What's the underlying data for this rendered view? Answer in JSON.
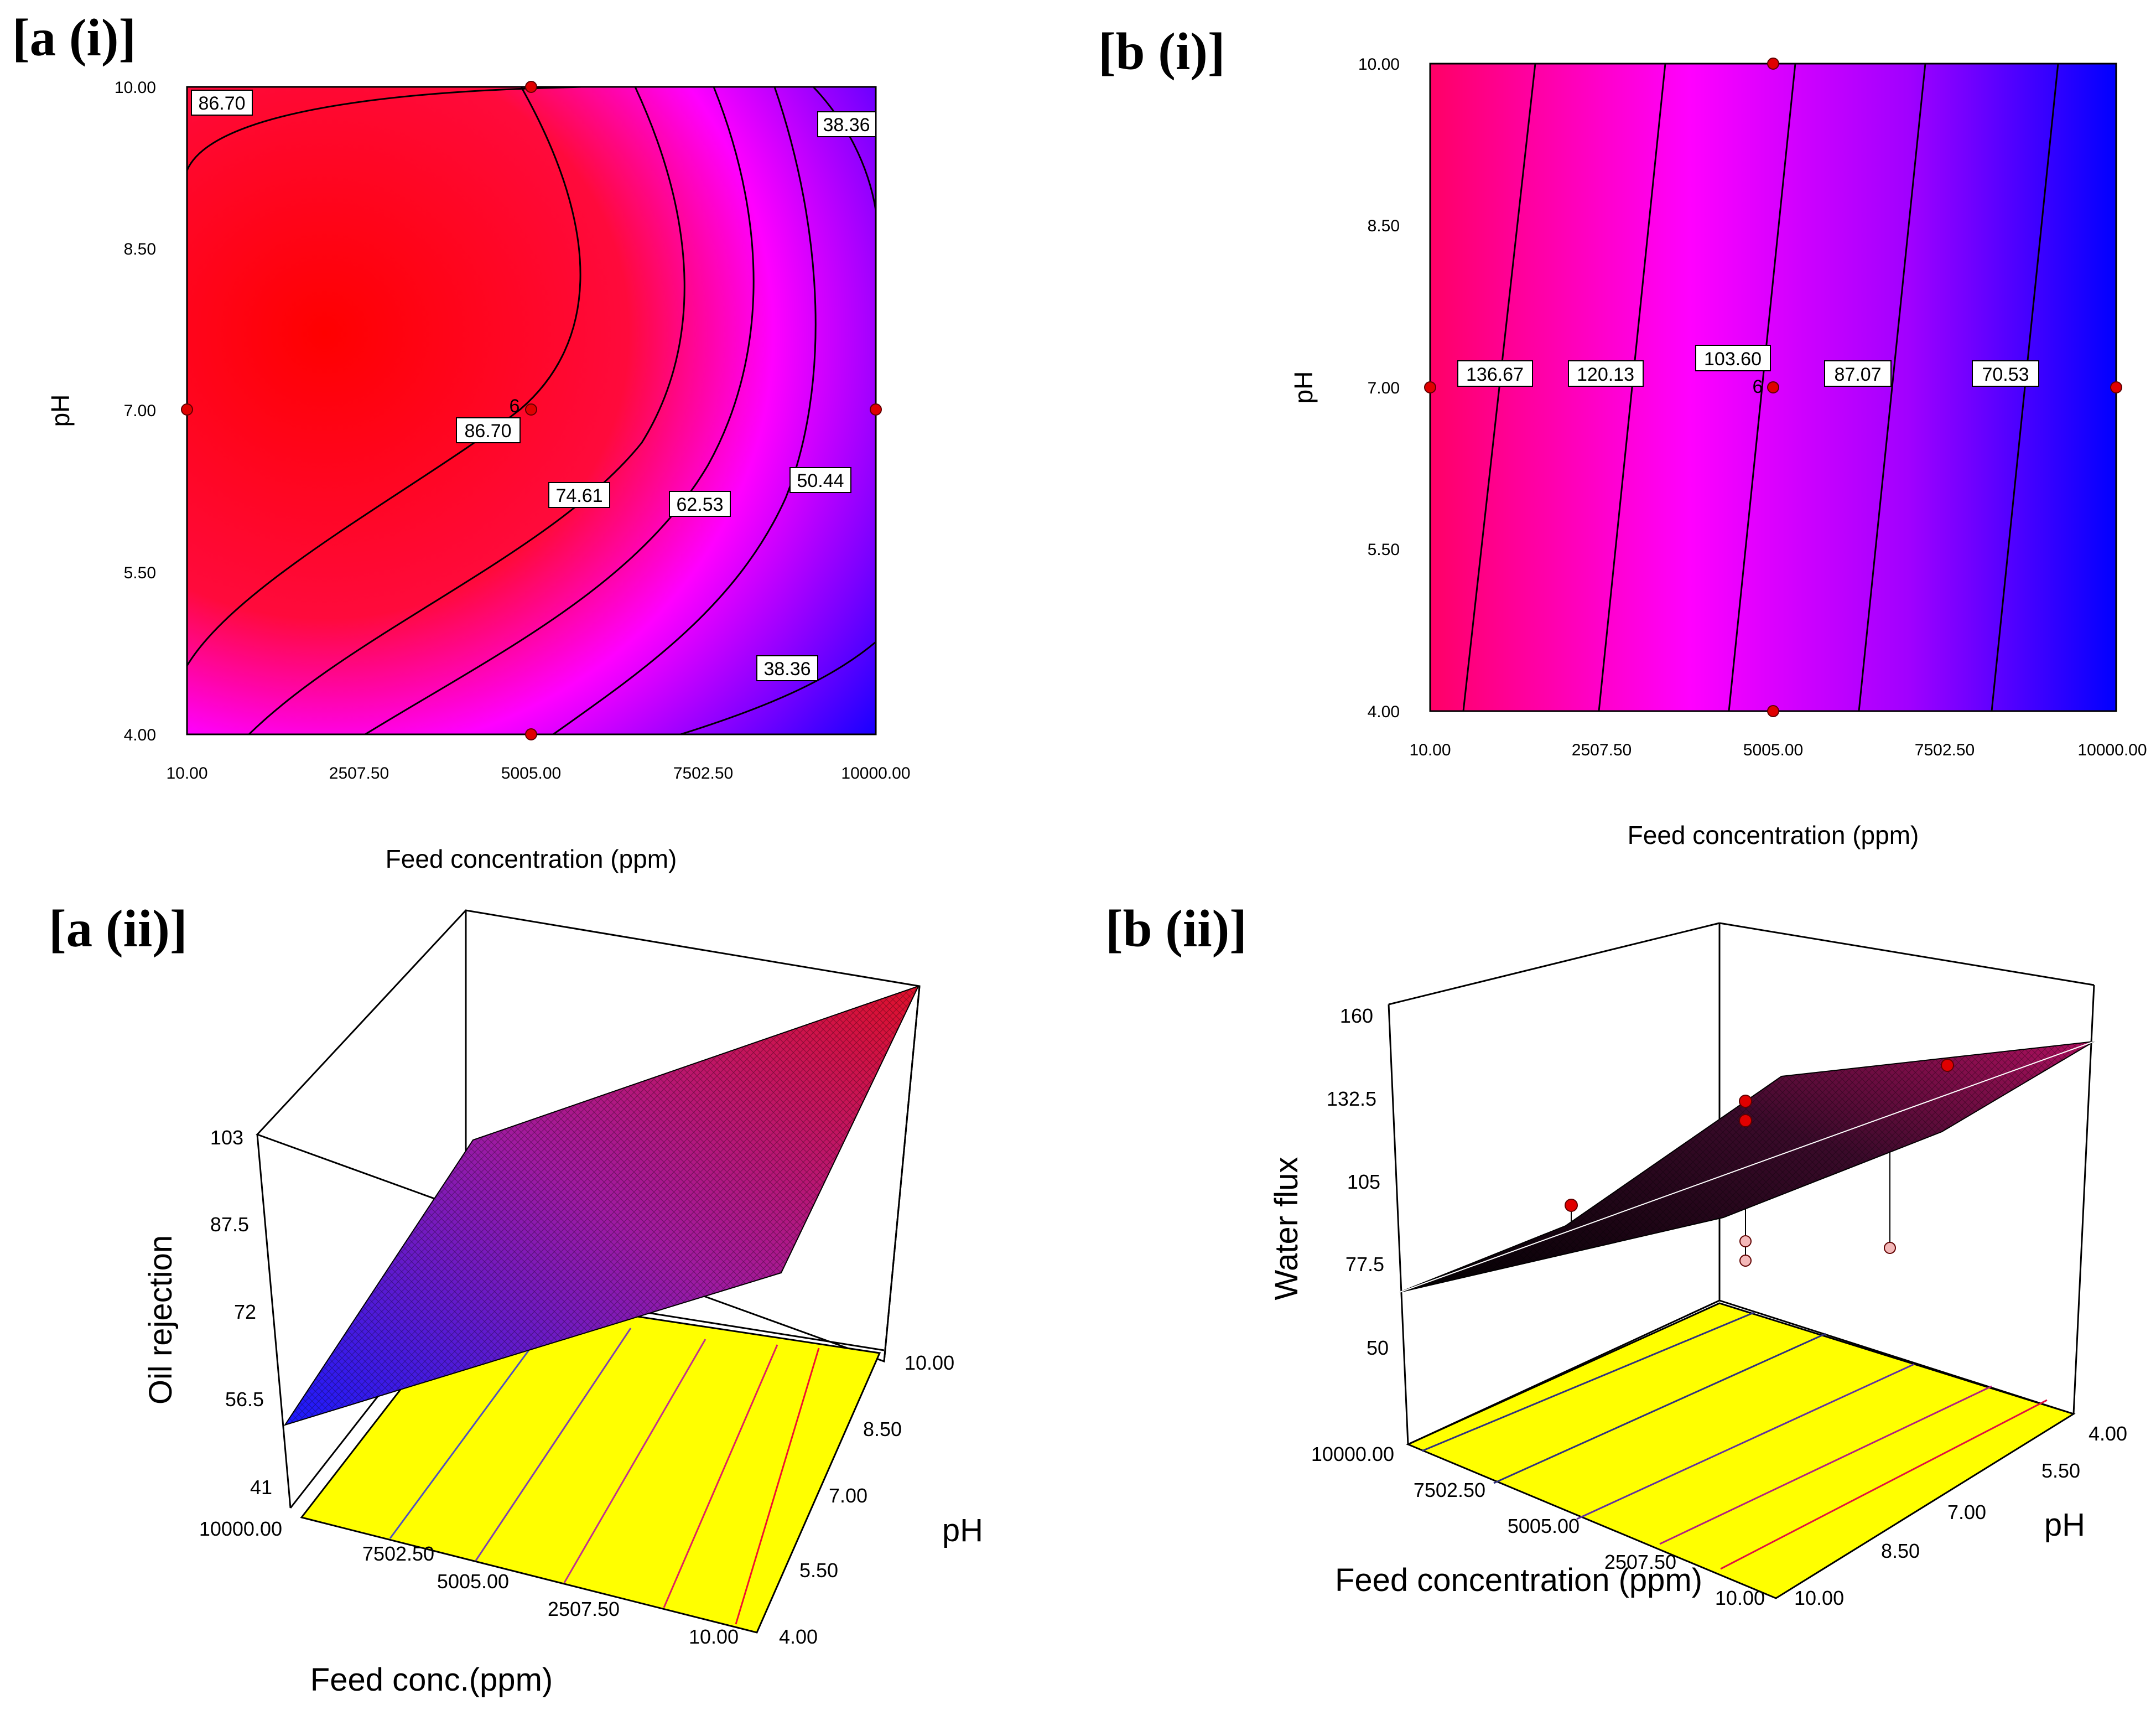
{
  "panels": {
    "a_i": {
      "label": "[a (i)]",
      "xlabel": "Feed concentration (ppm)",
      "ylabel": "pH",
      "xticks": [
        "10.00",
        "2507.50",
        "5005.00",
        "7502.50",
        "10000.00"
      ],
      "yticks": [
        "10.00",
        "8.50",
        "7.00",
        "5.50",
        "4.00"
      ],
      "contour_labels": [
        "86.70",
        "86.70",
        "74.61",
        "62.53",
        "50.44",
        "38.36",
        "38.36"
      ],
      "point_counts": [
        "6"
      ]
    },
    "b_i": {
      "label": "[b (i)]",
      "xlabel": "Feed concentration (ppm)",
      "ylabel": "pH",
      "xticks": [
        "10.00",
        "2507.50",
        "5005.00",
        "7502.50",
        "10000.00"
      ],
      "yticks": [
        "10.00",
        "8.50",
        "7.00",
        "5.50",
        "4.00"
      ],
      "contour_labels": [
        "136.67",
        "120.13",
        "103.60",
        "87.07",
        "70.53"
      ],
      "point_counts": [
        "6"
      ]
    },
    "a_ii": {
      "label": "[a (ii)]",
      "zlabel": "Oil rejection",
      "xlabel": "Feed conc.(ppm)",
      "ylabel": "pH",
      "zticks": [
        "103",
        "87.5",
        "72",
        "56.5",
        "41"
      ],
      "xticks": [
        "10000.00",
        "7502.50",
        "5005.00",
        "2507.50",
        "10.00"
      ],
      "yticks": [
        "4.00",
        "5.50",
        "7.00",
        "8.50",
        "10.00"
      ]
    },
    "b_ii": {
      "label": "[b (ii)]",
      "zlabel": "Water flux",
      "xlabel": "Feed concentration (ppm)",
      "ylabel": "pH",
      "zticks": [
        "160",
        "132.5",
        "105",
        "77.5",
        "50"
      ],
      "xticks": [
        "10000.00",
        "7502.50",
        "5005.00",
        "2507.50",
        "10.00"
      ],
      "yticks": [
        "4.00",
        "5.50",
        "7.00",
        "8.50",
        "10.00"
      ]
    }
  },
  "chart_data": [
    {
      "type": "contour",
      "title": "[a (i)]",
      "xlabel": "Feed concentration (ppm)",
      "ylabel": "pH",
      "xlim": [
        10,
        10000
      ],
      "ylim": [
        4,
        10
      ],
      "contour_levels": [
        86.7,
        74.61,
        62.53,
        50.44,
        38.36
      ],
      "design_points": [
        {
          "x": 10,
          "y": 7
        },
        {
          "x": 5005,
          "y": 10
        },
        {
          "x": 5005,
          "y": 7,
          "count": 6
        },
        {
          "x": 5005,
          "y": 4
        },
        {
          "x": 10000,
          "y": 7
        }
      ],
      "colormap": [
        "#ff0000",
        "#ff00ff",
        "#0000ff"
      ]
    },
    {
      "type": "contour",
      "title": "[b (i)]",
      "xlabel": "Feed concentration (ppm)",
      "ylabel": "pH",
      "xlim": [
        10,
        10000
      ],
      "ylim": [
        4,
        10
      ],
      "contour_levels": [
        136.67,
        120.13,
        103.6,
        87.07,
        70.53
      ],
      "design_points": [
        {
          "x": 10,
          "y": 7
        },
        {
          "x": 5005,
          "y": 10
        },
        {
          "x": 5005,
          "y": 7,
          "count": 6
        },
        {
          "x": 5005,
          "y": 4
        },
        {
          "x": 10000,
          "y": 7
        }
      ],
      "colormap": [
        "#ff0066",
        "#ff00ff",
        "#0000ff"
      ]
    },
    {
      "type": "surface",
      "title": "[a (ii)]",
      "xlabel": "Feed conc.(ppm)",
      "ylabel": "pH",
      "zlabel": "Oil rejection",
      "xlim": [
        10,
        10000
      ],
      "ylim": [
        4,
        10
      ],
      "zlim": [
        41,
        103
      ]
    },
    {
      "type": "surface",
      "title": "[b (ii)]",
      "xlabel": "Feed concentration (ppm)",
      "ylabel": "pH",
      "zlabel": "Water flux",
      "xlim": [
        10,
        10000
      ],
      "ylim": [
        4,
        10
      ],
      "zlim": [
        50,
        160
      ]
    }
  ]
}
